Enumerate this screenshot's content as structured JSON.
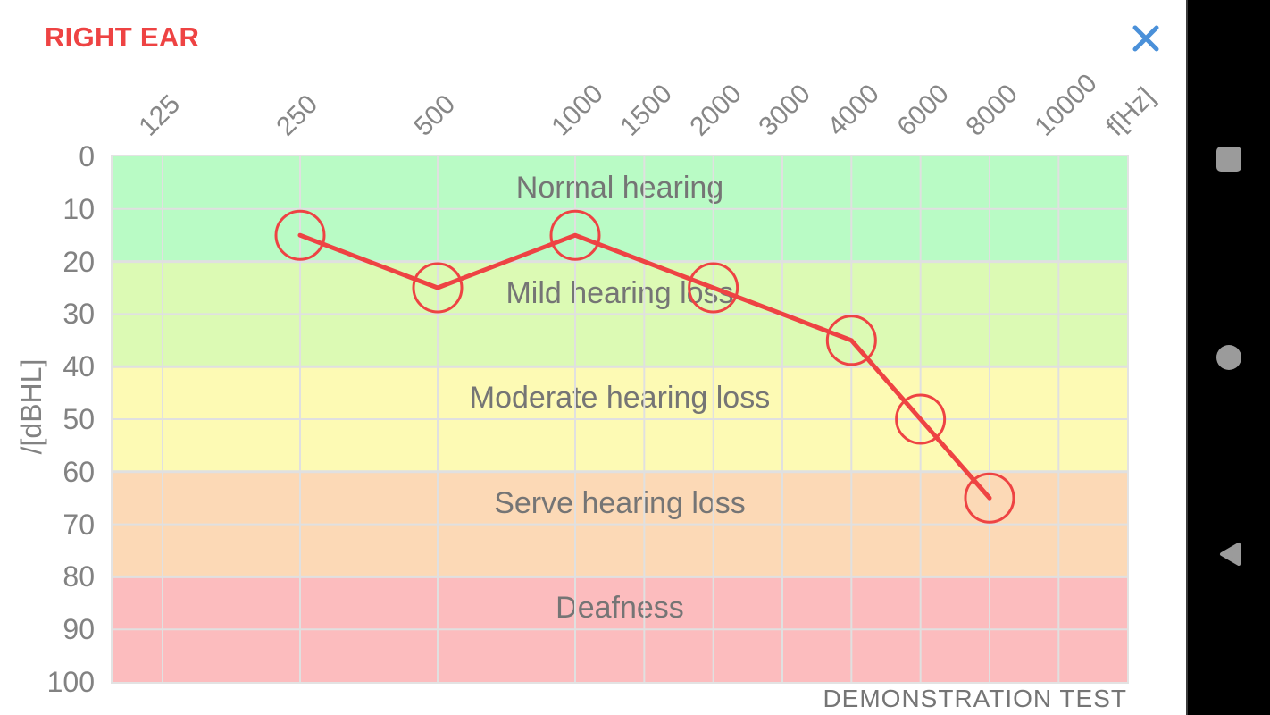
{
  "header": {
    "title": "RIGHT EAR",
    "title_color": "#ee4343",
    "close_icon_color": "#4a90d9"
  },
  "chart_data": {
    "type": "line",
    "title": "",
    "x_axis": {
      "unit_label": "f[Hz]",
      "ticks": [
        "125",
        "250",
        "500",
        "1000",
        "1500",
        "2000",
        "3000",
        "4000",
        "6000",
        "8000",
        "10000"
      ]
    },
    "y_axis": {
      "label": "/[dBHL]",
      "ticks": [
        "0",
        "10",
        "20",
        "30",
        "40",
        "50",
        "60",
        "70",
        "80",
        "90",
        "100"
      ],
      "range": [
        0,
        100
      ]
    },
    "grid": true,
    "gridline_color": "#e0e0e0",
    "bands": [
      {
        "label": "Normal hearing",
        "from": 0,
        "to": 20,
        "color": "#b9fbc5"
      },
      {
        "label": "Mild hearing loss",
        "from": 20,
        "to": 40,
        "color": "#dcfab4"
      },
      {
        "label": "Moderate hearing loss",
        "from": 40,
        "to": 60,
        "color": "#fdfab4"
      },
      {
        "label": "Serve hearing loss",
        "from": 60,
        "to": 80,
        "color": "#fcd9b6"
      },
      {
        "label": "Deafness",
        "from": 80,
        "to": 100,
        "color": "#fcbcbe"
      }
    ],
    "series": [
      {
        "name": "right-ear-thresholds",
        "color": "#ee4343",
        "marker": "circle",
        "points": [
          {
            "f": 250,
            "dB": 15
          },
          {
            "f": 500,
            "dB": 25
          },
          {
            "f": 1000,
            "dB": 15
          },
          {
            "f": 2000,
            "dB": 25
          },
          {
            "f": 4000,
            "dB": 35
          },
          {
            "f": 6000,
            "dB": 50
          },
          {
            "f": 8000,
            "dB": 65
          }
        ]
      }
    ],
    "footnote": "DEMONSTRATION TEST"
  },
  "navbar": {
    "background": "#000000",
    "icon_color": "#9b9b9b",
    "buttons": [
      "recents",
      "home",
      "back"
    ]
  }
}
